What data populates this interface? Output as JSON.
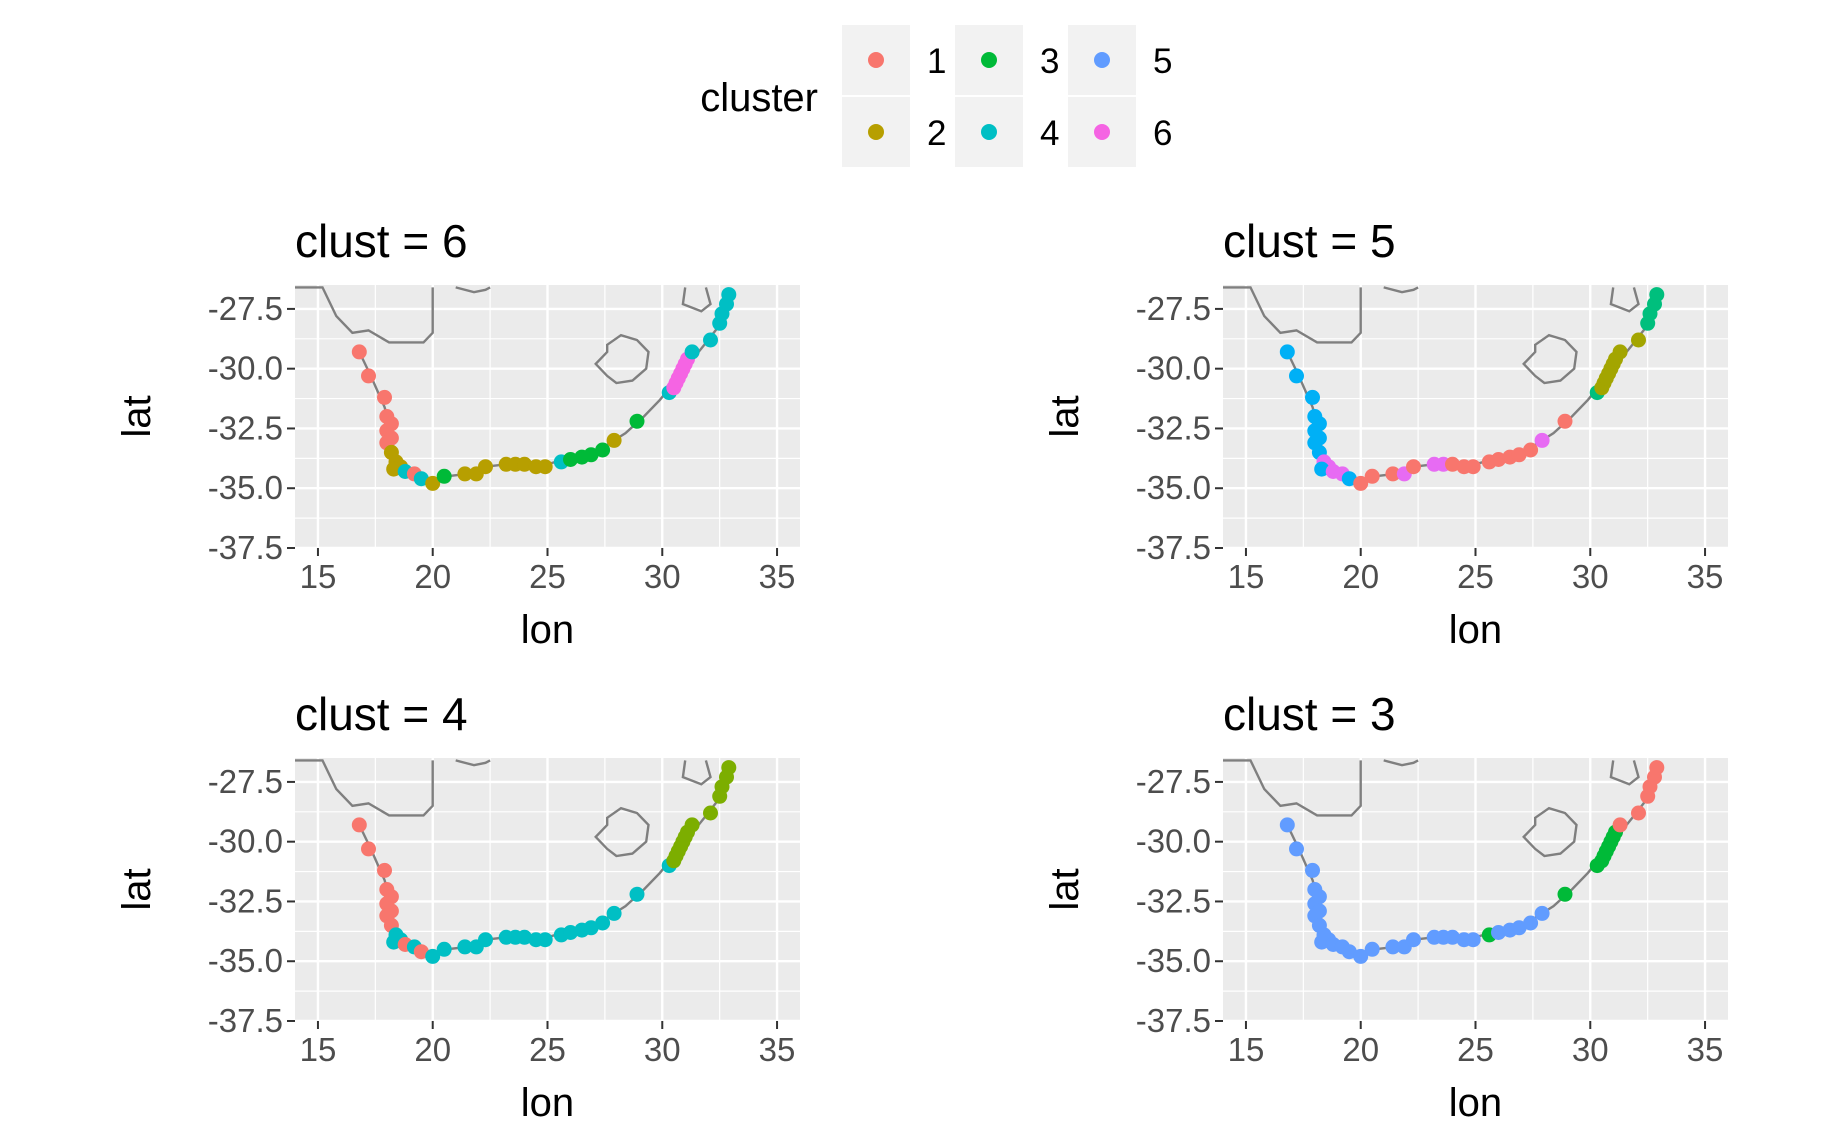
{
  "legend": {
    "title": "cluster",
    "entries": [
      {
        "label": "1",
        "color": "#F8766D"
      },
      {
        "label": "2",
        "color": "#B79F00"
      },
      {
        "label": "3",
        "color": "#00BA38"
      },
      {
        "label": "4",
        "color": "#00BFC4"
      },
      {
        "label": "5",
        "color": "#619CFF"
      },
      {
        "label": "6",
        "color": "#F564E3"
      }
    ]
  },
  "axes": {
    "xlabel": "lon",
    "ylabel": "lat",
    "xticks": [
      "15",
      "20",
      "25",
      "30",
      "35"
    ],
    "yticks": [
      "-27.5",
      "-30.0",
      "-32.5",
      "-35.0",
      "-37.5"
    ]
  },
  "chart_data": {
    "type": "scatter",
    "xlim": [
      14,
      36
    ],
    "ylim": [
      -37.5,
      -26.5
    ],
    "grid": true,
    "legend_position": "top",
    "outline_color": "#7f7f7f",
    "coast": [
      [
        16.8,
        -29.3
      ],
      [
        17.3,
        -30.3
      ],
      [
        17.9,
        -31.6
      ],
      [
        18.2,
        -32.6
      ],
      [
        18.3,
        -33.4
      ],
      [
        18.4,
        -33.9
      ],
      [
        18.8,
        -34.2
      ],
      [
        19.3,
        -34.4
      ],
      [
        19.8,
        -34.6
      ],
      [
        20.1,
        -34.8
      ],
      [
        20.6,
        -34.5
      ],
      [
        21.5,
        -34.4
      ],
      [
        22.3,
        -34.1
      ],
      [
        23.2,
        -34.0
      ],
      [
        24.3,
        -34.1
      ],
      [
        25.0,
        -34.0
      ],
      [
        25.7,
        -33.8
      ],
      [
        26.5,
        -33.7
      ],
      [
        27.4,
        -33.3
      ],
      [
        28.4,
        -32.7
      ],
      [
        29.2,
        -32.0
      ],
      [
        29.9,
        -31.3
      ],
      [
        30.4,
        -30.7
      ],
      [
        30.9,
        -30.1
      ],
      [
        31.5,
        -29.4
      ],
      [
        32.0,
        -28.8
      ],
      [
        32.4,
        -28.3
      ],
      [
        32.8,
        -27.4
      ],
      [
        32.9,
        -26.6
      ]
    ],
    "namibia_border": [
      [
        14,
        -26.6
      ],
      [
        15.2,
        -26.6
      ],
      [
        15.8,
        -27.8
      ],
      [
        16.5,
        -28.5
      ],
      [
        17.2,
        -28.4
      ],
      [
        18.1,
        -28.9
      ],
      [
        19.6,
        -28.9
      ],
      [
        20.0,
        -28.5
      ],
      [
        20.0,
        -26.6
      ]
    ],
    "border_fragment": [
      [
        21,
        -26.6
      ],
      [
        21.8,
        -26.8
      ],
      [
        22.3,
        -26.7
      ],
      [
        22.5,
        -26.6
      ]
    ],
    "swaziland_fragment": [
      [
        31.0,
        -26.6
      ],
      [
        30.9,
        -27.3
      ],
      [
        31.7,
        -27.6
      ],
      [
        32.1,
        -27.3
      ],
      [
        31.9,
        -26.6
      ]
    ],
    "lesotho": [
      [
        27.6,
        -29.0
      ],
      [
        28.2,
        -28.6
      ],
      [
        28.9,
        -28.8
      ],
      [
        29.4,
        -29.3
      ],
      [
        29.3,
        -30.0
      ],
      [
        28.7,
        -30.5
      ],
      [
        28.0,
        -30.6
      ],
      [
        27.6,
        -30.3
      ],
      [
        27.1,
        -29.8
      ],
      [
        27.6,
        -29.3
      ]
    ],
    "points": [
      {
        "lon": 16.8,
        "lat": -29.3
      },
      {
        "lon": 17.2,
        "lat": -30.3
      },
      {
        "lon": 17.9,
        "lat": -31.2
      },
      {
        "lon": 18.0,
        "lat": -32.0
      },
      {
        "lon": 18.2,
        "lat": -32.3
      },
      {
        "lon": 18.0,
        "lat": -32.6
      },
      {
        "lon": 18.2,
        "lat": -32.9
      },
      {
        "lon": 18.0,
        "lat": -33.1
      },
      {
        "lon": 18.2,
        "lat": -33.5
      },
      {
        "lon": 18.4,
        "lat": -33.9
      },
      {
        "lon": 18.6,
        "lat": -34.1
      },
      {
        "lon": 18.3,
        "lat": -34.2
      },
      {
        "lon": 18.8,
        "lat": -34.3
      },
      {
        "lon": 19.2,
        "lat": -34.4
      },
      {
        "lon": 19.5,
        "lat": -34.6
      },
      {
        "lon": 20.0,
        "lat": -34.8
      },
      {
        "lon": 20.5,
        "lat": -34.5
      },
      {
        "lon": 21.4,
        "lat": -34.4
      },
      {
        "lon": 21.9,
        "lat": -34.4
      },
      {
        "lon": 22.3,
        "lat": -34.1
      },
      {
        "lon": 23.2,
        "lat": -34.0
      },
      {
        "lon": 23.6,
        "lat": -34.0
      },
      {
        "lon": 24.0,
        "lat": -34.0
      },
      {
        "lon": 24.5,
        "lat": -34.1
      },
      {
        "lon": 24.9,
        "lat": -34.1
      },
      {
        "lon": 25.6,
        "lat": -33.9
      },
      {
        "lon": 26.0,
        "lat": -33.8
      },
      {
        "lon": 26.5,
        "lat": -33.7
      },
      {
        "lon": 26.9,
        "lat": -33.6
      },
      {
        "lon": 27.4,
        "lat": -33.4
      },
      {
        "lon": 27.9,
        "lat": -33.0
      },
      {
        "lon": 28.9,
        "lat": -32.2
      },
      {
        "lon": 30.3,
        "lat": -31.0
      },
      {
        "lon": 30.5,
        "lat": -30.8
      },
      {
        "lon": 30.6,
        "lat": -30.6
      },
      {
        "lon": 30.7,
        "lat": -30.4
      },
      {
        "lon": 30.8,
        "lat": -30.2
      },
      {
        "lon": 30.9,
        "lat": -30.0
      },
      {
        "lon": 31.0,
        "lat": -29.8
      },
      {
        "lon": 31.1,
        "lat": -29.6
      },
      {
        "lon": 31.3,
        "lat": -29.3
      },
      {
        "lon": 32.1,
        "lat": -28.8
      },
      {
        "lon": 32.5,
        "lat": -28.1
      },
      {
        "lon": 32.6,
        "lat": -27.7
      },
      {
        "lon": 32.8,
        "lat": -27.3
      },
      {
        "lon": 32.9,
        "lat": -26.9
      }
    ],
    "panels": [
      {
        "title": "clust = 6",
        "clusters": [
          1,
          1,
          1,
          1,
          1,
          1,
          1,
          1,
          2,
          2,
          2,
          2,
          4,
          1,
          4,
          2,
          3,
          2,
          2,
          2,
          2,
          2,
          2,
          2,
          2,
          4,
          3,
          3,
          3,
          3,
          2,
          3,
          4,
          6,
          6,
          6,
          6,
          6,
          6,
          6,
          4,
          4,
          4,
          4,
          4,
          4
        ]
      },
      {
        "title": "clust = 5",
        "clusters": [
          4,
          4,
          4,
          4,
          4,
          4,
          4,
          4,
          4,
          6,
          6,
          4,
          6,
          6,
          4,
          1,
          1,
          1,
          6,
          1,
          6,
          6,
          1,
          1,
          1,
          1,
          1,
          1,
          1,
          1,
          6,
          1,
          3,
          2,
          2,
          2,
          2,
          2,
          2,
          2,
          2,
          2,
          3,
          3,
          3,
          3
        ]
      },
      {
        "title": "clust = 4",
        "clusters": [
          1,
          1,
          1,
          1,
          1,
          1,
          1,
          1,
          1,
          4,
          4,
          4,
          1,
          4,
          1,
          4,
          4,
          4,
          4,
          4,
          4,
          4,
          4,
          4,
          4,
          4,
          4,
          4,
          4,
          4,
          4,
          4,
          4,
          2,
          2,
          2,
          2,
          2,
          2,
          2,
          2,
          2,
          2,
          2,
          2,
          2
        ]
      },
      {
        "title": "clust = 3",
        "clusters": [
          5,
          5,
          5,
          5,
          5,
          5,
          5,
          5,
          5,
          5,
          5,
          5,
          5,
          5,
          5,
          5,
          5,
          5,
          5,
          5,
          5,
          5,
          5,
          5,
          5,
          3,
          5,
          5,
          5,
          5,
          5,
          3,
          3,
          3,
          3,
          3,
          3,
          3,
          3,
          3,
          1,
          1,
          1,
          1,
          1,
          1
        ]
      }
    ],
    "panel_palettes": [
      {
        "1": "#F8766D",
        "2": "#B79F00",
        "3": "#00BA38",
        "4": "#00BFC4",
        "5": "#619CFF",
        "6": "#F564E3"
      },
      {
        "1": "#F8766D",
        "2": "#A3A500",
        "3": "#00BF7D",
        "4": "#00B0F6",
        "6": "#E76BF3"
      },
      {
        "1": "#F8766D",
        "2": "#7CAE00",
        "4": "#00BFC4",
        "5": "#C77CFF"
      },
      {
        "1": "#F8766D",
        "3": "#00BA38",
        "5": "#619CFF"
      }
    ]
  }
}
